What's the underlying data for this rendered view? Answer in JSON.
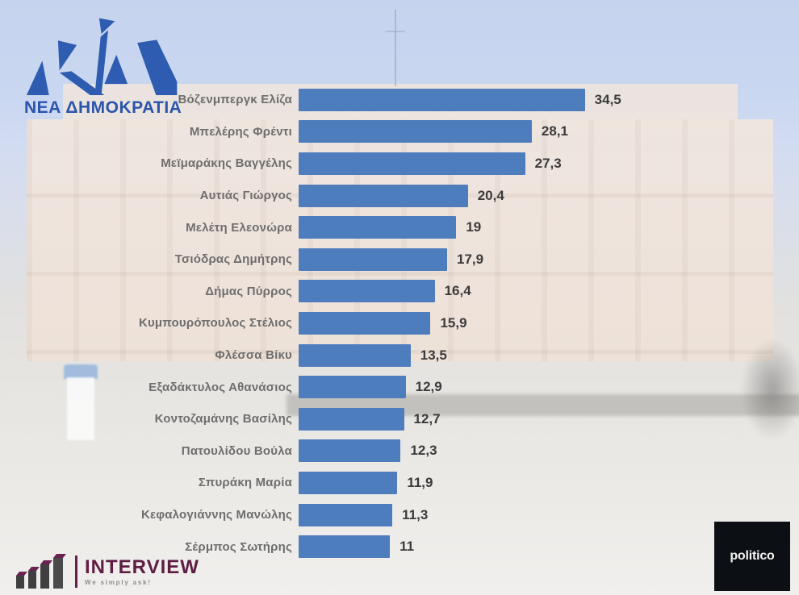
{
  "branding": {
    "nd_logo_text": "ΝΕΑ ΔΗΜΟΚΡΑΤΙΑ",
    "nd_blue": "#2d5cb0"
  },
  "background": {
    "photo": "hellenic-parliament-building-faded"
  },
  "chart_data": {
    "type": "bar",
    "orientation": "horizontal",
    "title": "",
    "categories": [
      "Βόζενμπεργκ Ελίζα",
      "Μπελέρης Φρέντι",
      "Μεϊμαράκης Βαγγέλης",
      "Αυτιάς Γιώργος",
      "Μελέτη Ελεονώρα",
      "Τσιόδρας Δημήτρης",
      "Δήμας Πύρρος",
      "Κυμπουρόπουλος Στέλιος",
      "Φλέσσα Βίκυ",
      "Εξαδάκτυλος Αθανάσιος",
      "Κοντοζαμάνης Βασίλης",
      "Πατουλίδου Βούλα",
      "Σπυράκη Μαρία",
      "Κεφαλογιάννης Μανώλης",
      "Σέρμπος Σωτήρης"
    ],
    "values": [
      34.5,
      28.1,
      27.3,
      20.4,
      19,
      17.9,
      16.4,
      15.9,
      13.5,
      12.9,
      12.7,
      12.3,
      11.9,
      11.3,
      11
    ],
    "value_labels": [
      "34,5",
      "28,1",
      "27,3",
      "20,4",
      "19",
      "17,9",
      "16,4",
      "15,9",
      "13,5",
      "12,9",
      "12,7",
      "12,3",
      "11,9",
      "11,3",
      "11"
    ],
    "bar_color": "#4e7dbd",
    "label_color": "#6e6e6e",
    "value_color": "#3b3b3b",
    "xlim": [
      0,
      36
    ],
    "grid": false,
    "legend": false,
    "decimal_separator": ","
  },
  "footer": {
    "interview": {
      "name": "INTERVIEW",
      "tagline": "We simply ask!",
      "color": "#5e1d42"
    },
    "politico": {
      "name": "politico",
      "bg": "#0c1014"
    }
  }
}
